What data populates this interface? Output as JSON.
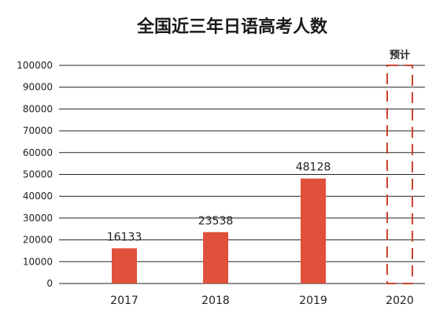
{
  "chart_data": {
    "type": "bar",
    "title": "全国近三年日语高考人数",
    "categories": [
      "2017",
      "2018",
      "2019",
      "2020"
    ],
    "values": [
      16133,
      23538,
      48128,
      null
    ],
    "data_labels": [
      "16133",
      "23538",
      "48128",
      ""
    ],
    "yticks": [
      "0",
      "10000",
      "20000",
      "30000",
      "40000",
      "50000",
      "60000",
      "70000",
      "80000",
      "90000",
      "100000"
    ],
    "ylim": [
      0,
      100000
    ],
    "forecast_label": "预计",
    "grid": true,
    "colors": {
      "bar": "#e0503a",
      "forecast_outline": "#c9452f",
      "grid": "#222222",
      "text": "#222222"
    }
  }
}
